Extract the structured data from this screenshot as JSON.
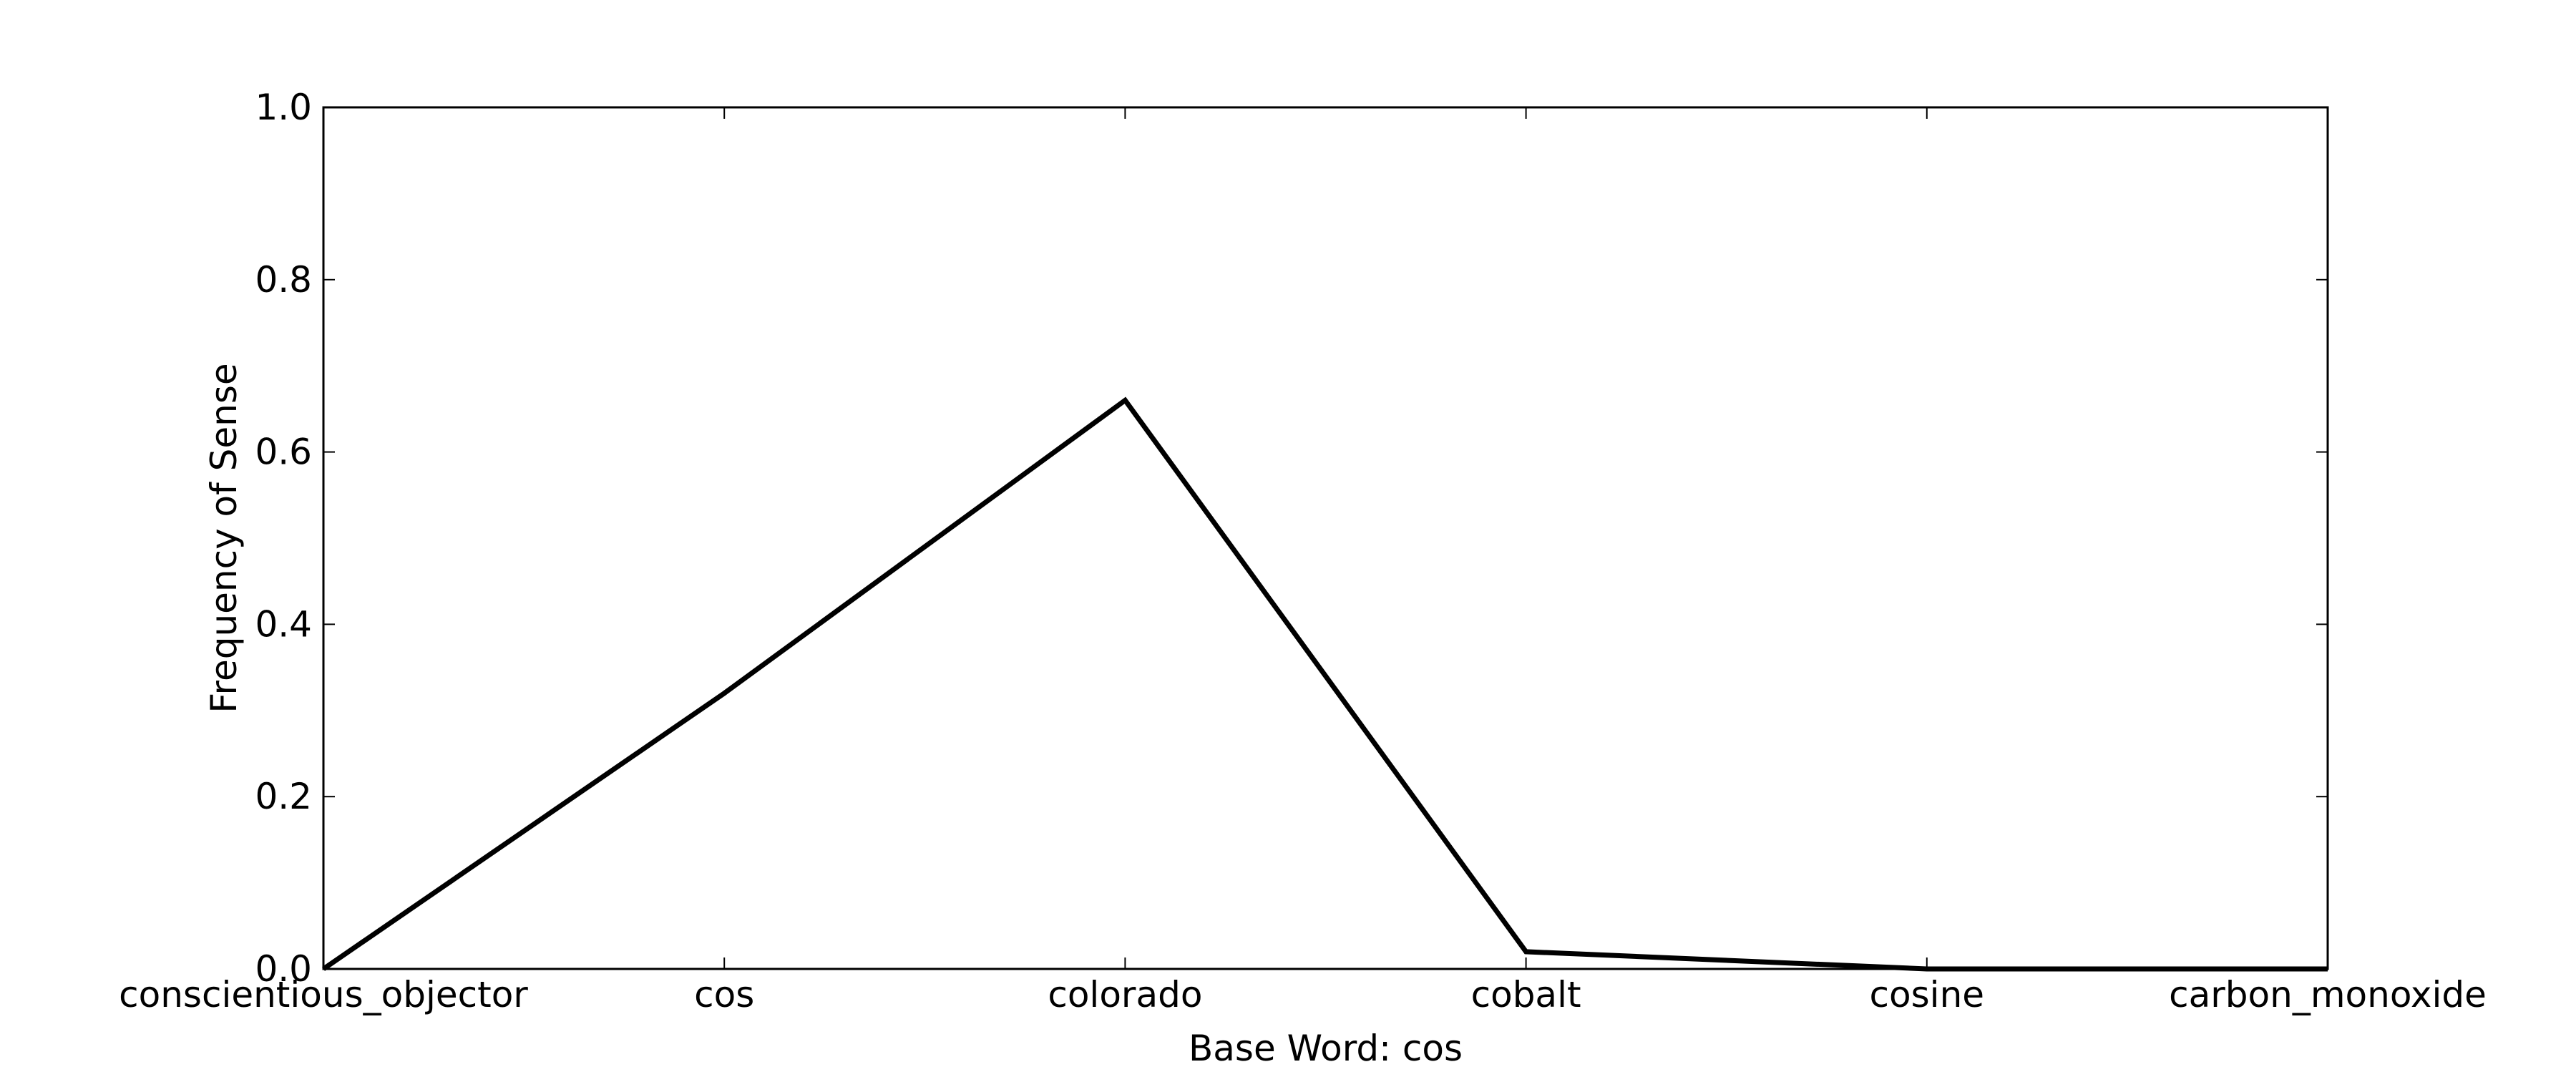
{
  "chart_data": {
    "type": "line",
    "title": "",
    "xlabel": "Base Word: cos",
    "ylabel": "Frequency of Sense",
    "categories": [
      "conscientious_objector",
      "cos",
      "colorado",
      "cobalt",
      "cosine",
      "carbon_monoxide"
    ],
    "series": [
      {
        "values": [
          0.0,
          0.32,
          0.66,
          0.02,
          0.0,
          0.0
        ],
        "color": "#000000"
      }
    ],
    "ylim": [
      0.0,
      1.0
    ],
    "yticks": [
      "0.0",
      "0.2",
      "0.4",
      "0.6",
      "0.8",
      "1.0"
    ],
    "grid": false,
    "legend": "none"
  }
}
